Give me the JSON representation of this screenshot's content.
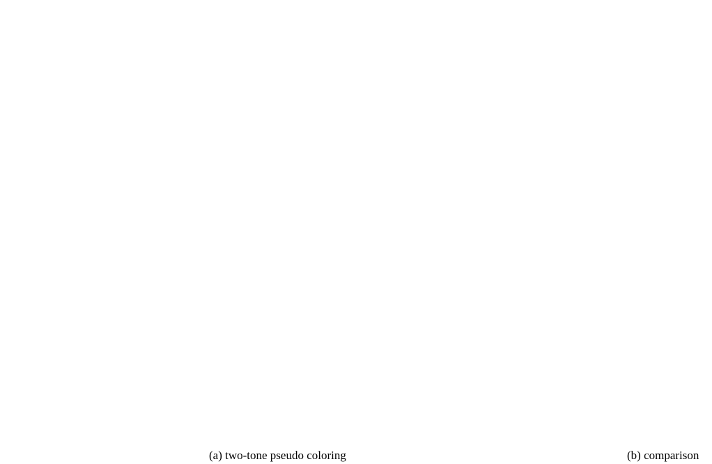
{
  "caption_a": "(a) two-tone pseudo coloring",
  "caption_b": "(b) comparison"
}
